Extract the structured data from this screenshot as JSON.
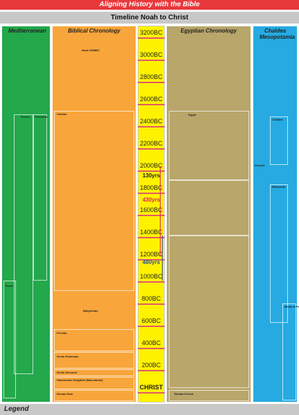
{
  "header": {
    "title": "Aligning History with the Bible",
    "subtitle": "Timeline Noah to Christ"
  },
  "columns": [
    {
      "title": "Mediterranean"
    },
    {
      "title": "Biblical Chronology"
    },
    {
      "title": "Egyptian Chronology"
    },
    {
      "title": "Chaldea Mesopotamia"
    }
  ],
  "timeline": {
    "labels": [
      "3200BC",
      "3000BC",
      "2800BC",
      "2600BC",
      "2400BC",
      "2200BC",
      "2000BC",
      "1800BC",
      "1600BC",
      "1400BC",
      "1200BC",
      "1000BC",
      "800BC",
      "600BC",
      "400BC",
      "200BC",
      "CHRIST"
    ],
    "spans": [
      "130yrs",
      "430yrs",
      "480yrs"
    ]
  },
  "regions": {
    "mediterranean": [
      "Greece",
      "Phoenicia",
      "Rome"
    ],
    "biblical": [
      "Noah 2958BC",
      "Canaan",
      "Babylonian",
      "Persian",
      "Greek Ptolemais",
      "Greek Seleucid",
      "Hasmonean Kingdom (Maccabean)",
      "Roman Rule"
    ],
    "egyptian": [
      "Egypt",
      "Roman Period"
    ],
    "chaldea": [
      "Chaldea",
      "Assyria",
      "Babylonia",
      "Media & Persia"
    ]
  },
  "footer": {
    "legend": "Legend"
  }
}
